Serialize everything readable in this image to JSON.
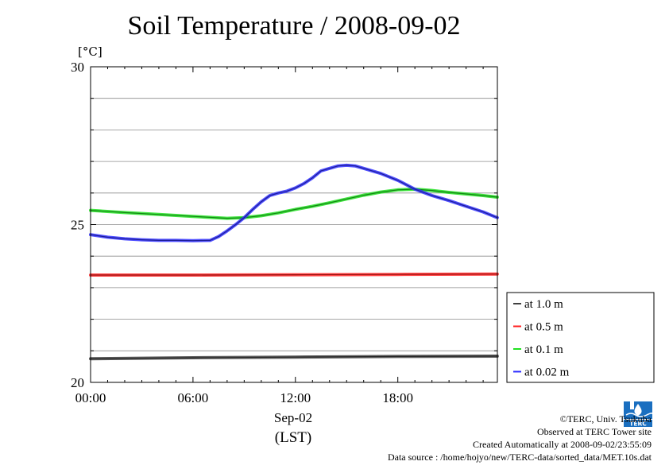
{
  "chart_data": {
    "type": "line",
    "title": "Soil Temperature / 2008-09-02",
    "ylabel": "[°C]",
    "xlabel_date": "Sep-02",
    "xlabel_tz": "(LST)",
    "ylim": [
      20,
      30
    ],
    "y_ticks": [
      "20",
      "25",
      "30"
    ],
    "xlim_hours": [
      0,
      23.833
    ],
    "x_ticks": [
      {
        "hour": 0,
        "label": "00:00"
      },
      {
        "hour": 6,
        "label": "06:00"
      },
      {
        "hour": 12,
        "label": "12:00"
      },
      {
        "hour": 18,
        "label": "18:00"
      }
    ],
    "grid": true,
    "legend_position": "right",
    "series": [
      {
        "name": "at 1.0 m",
        "color": "#404040",
        "x": [
          0,
          6,
          12,
          18,
          23.83
        ],
        "y": [
          20.75,
          20.78,
          20.8,
          20.82,
          20.83
        ]
      },
      {
        "name": "at 0.5 m",
        "color": "#ff2020",
        "x": [
          0,
          6,
          12,
          18,
          23.83
        ],
        "y": [
          23.4,
          23.4,
          23.41,
          23.42,
          23.43
        ]
      },
      {
        "name": "at 0.1 m",
        "color": "#20e020",
        "x": [
          0,
          2,
          4,
          6,
          8,
          9,
          10,
          11,
          12,
          13,
          14,
          15,
          16,
          17,
          18,
          19,
          20,
          21,
          22,
          23,
          23.83
        ],
        "y": [
          25.45,
          25.38,
          25.32,
          25.26,
          25.2,
          25.22,
          25.28,
          25.37,
          25.48,
          25.58,
          25.69,
          25.81,
          25.93,
          26.03,
          26.1,
          26.12,
          26.08,
          26.02,
          25.97,
          25.92,
          25.87
        ]
      },
      {
        "name": "at 0.02 m",
        "color": "#3030ff",
        "x": [
          0,
          1,
          2,
          3,
          4,
          5,
          6,
          7,
          7.5,
          8,
          8.5,
          9,
          9.5,
          10,
          10.5,
          11,
          11.5,
          12,
          12.5,
          13,
          13.5,
          14,
          14.5,
          15,
          15.5,
          16,
          17,
          18,
          19,
          20,
          21,
          22,
          23,
          23.83
        ],
        "y": [
          24.68,
          24.6,
          24.55,
          24.52,
          24.5,
          24.5,
          24.49,
          24.5,
          24.62,
          24.8,
          25.0,
          25.22,
          25.48,
          25.72,
          25.92,
          26.0,
          26.06,
          26.16,
          26.3,
          26.48,
          26.7,
          26.78,
          26.86,
          26.88,
          26.86,
          26.78,
          26.62,
          26.4,
          26.12,
          25.92,
          25.76,
          25.58,
          25.4,
          25.22
        ]
      }
    ]
  },
  "credits": {
    "copyright": "©TERC, Univ. Tsukuba",
    "observed": "Observed at TERC Tower site",
    "created": "Created Automatically at 2008-09-02/23:55:09",
    "source": "Data source : /home/hojyo/new/TERC-data/sorted_data/MET.10s.dat"
  },
  "logo_text": "TERC"
}
